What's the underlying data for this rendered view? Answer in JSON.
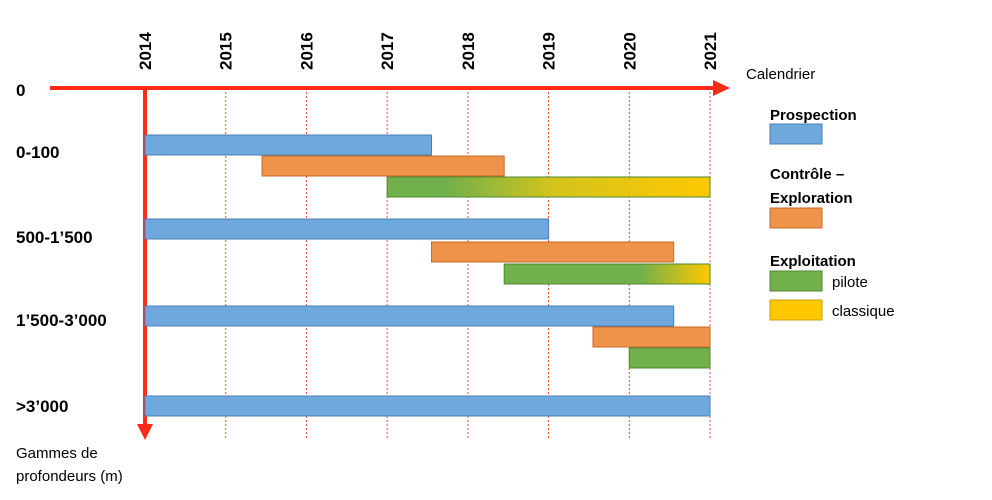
{
  "chart_data": {
    "type": "gantt",
    "time_axis": {
      "label": "Calendrier",
      "years": [
        "2014",
        "2015",
        "2016",
        "2017",
        "2018",
        "2019",
        "2020",
        "2021"
      ],
      "range": [
        2014,
        2021
      ],
      "gridlines": "dotted-red-vertical"
    },
    "depth_axis": {
      "label_line1": "Gammes de",
      "label_line2": "profondeurs (m)",
      "zero_label": "0",
      "categories": [
        "0-100",
        "500-1’500",
        "1’500-3’000",
        ">3’000"
      ]
    },
    "colors": {
      "axis": "#ff2a1a",
      "grid": "#e8503a",
      "prospection": "#6fa8dc",
      "controle_exploration": "#f0934a",
      "exploitation_pilote": "#72b04c",
      "exploitation_classique": "#ffc800"
    },
    "legend": {
      "prospection": "Prospection",
      "controle_line1": "Contrôle –",
      "controle_line2": "Exploration",
      "exploitation": "Exploitation",
      "pilote": "pilote",
      "classique": "classique"
    },
    "bars": [
      {
        "group": "0-100",
        "phase": "prospection",
        "start": 2014.0,
        "end": 2017.55
      },
      {
        "group": "0-100",
        "phase": "controle_exploration",
        "start": 2015.45,
        "end": 2018.45
      },
      {
        "group": "0-100",
        "phase": "exploitation",
        "start": 2017.0,
        "end": 2021.0,
        "transition": "pilote-to-classique",
        "pilote_until": 2018.9
      },
      {
        "group": "500-1’500",
        "phase": "prospection",
        "start": 2014.0,
        "end": 2019.0
      },
      {
        "group": "500-1’500",
        "phase": "controle_exploration",
        "start": 2017.55,
        "end": 2020.55
      },
      {
        "group": "500-1’500",
        "phase": "exploitation",
        "start": 2018.45,
        "end": 2021.0,
        "transition": "pilote-to-classique",
        "pilote_until": 2020.45
      },
      {
        "group": "1’500-3’000",
        "phase": "prospection",
        "start": 2014.0,
        "end": 2020.55
      },
      {
        "group": "1’500-3’000",
        "phase": "controle_exploration",
        "start": 2019.55,
        "end": 2021.0
      },
      {
        "group": "1’500-3’000",
        "phase": "exploitation_pilote",
        "start": 2020.0,
        "end": 2021.0
      },
      {
        "group": ">3’000",
        "phase": "prospection",
        "start": 2014.0,
        "end": 2021.0
      }
    ]
  }
}
